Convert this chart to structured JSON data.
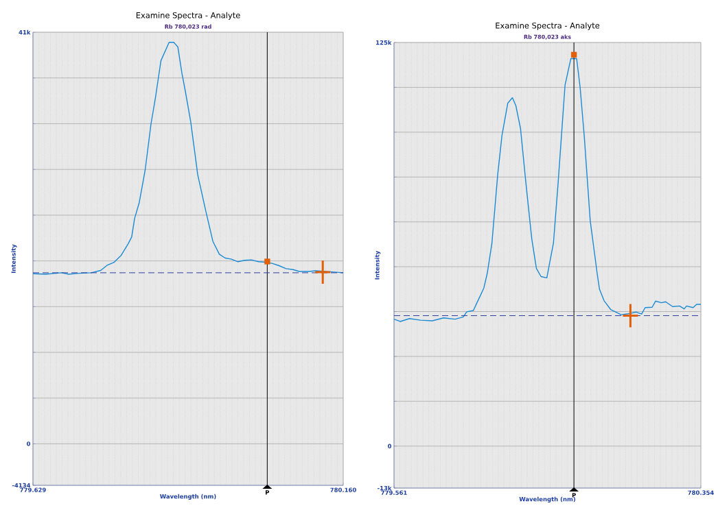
{
  "chart_data": [
    {
      "type": "line",
      "title": "Examine Spectra - Analyte",
      "subtitle": "Rb 780,023 rad",
      "xlabel": "Wavelength (nm)",
      "ylabel": "Intensity",
      "xlim": [
        779.629,
        780.16
      ],
      "xticks": [
        779.629,
        {
          "value": 780.16,
          "label": "780.160"
        }
      ],
      "ylim": [
        -4134,
        41000
      ],
      "yticks": [
        -4134,
        0,
        {
          "value": 4556,
          "label": null
        },
        {
          "value": 9111,
          "label": null
        },
        {
          "value": 13667,
          "label": null
        },
        {
          "value": 18222,
          "label": null
        },
        {
          "value": 22778,
          "label": null
        },
        {
          "value": 27333,
          "label": null
        },
        {
          "value": 31889,
          "label": null
        },
        {
          "value": 36444,
          "label": null
        },
        {
          "value": 41000,
          "label": "41k"
        }
      ],
      "grid": true,
      "series": [
        {
          "color": "#1a8ad4",
          "marker": "none",
          "x": [
            779.629,
            779.651,
            779.678,
            779.69,
            779.709,
            779.729,
            779.745,
            779.756,
            779.768,
            779.78,
            779.792,
            779.798,
            779.803,
            779.811,
            779.821,
            779.831,
            779.839,
            779.848,
            779.862,
            779.87,
            779.877,
            779.884,
            779.89,
            779.899,
            779.911,
            779.925,
            779.937,
            779.948,
            779.958,
            779.968,
            779.98,
            779.991,
            780.003,
            780.015,
            780.027,
            780.038,
            780.05,
            780.062,
            780.074,
            780.085,
            780.101,
            780.113,
            780.129,
            780.144,
            780.16
          ],
          "values": [
            16950,
            16900,
            17040,
            16900,
            16990,
            17040,
            17270,
            17790,
            18090,
            18780,
            19930,
            20610,
            22450,
            24050,
            27260,
            31850,
            34600,
            38160,
            39990,
            39990,
            39530,
            36890,
            35060,
            32080,
            26810,
            23140,
            20160,
            18890,
            18500,
            18410,
            18140,
            18280,
            18320,
            18140,
            18090,
            17980,
            17750,
            17450,
            17360,
            17170,
            17170,
            17240,
            null,
            17110,
            17040
          ]
        },
        {
          "type": "scatter",
          "color": "#e0600a",
          "marker": "square",
          "x": [
            780.03
          ],
          "values": [
            18160
          ]
        },
        {
          "type": "scatter",
          "color": "#e0600a",
          "marker": "cross",
          "x": [
            780.125
          ],
          "values": [
            17100
          ]
        }
      ],
      "ref_lines": [
        {
          "axis": "x",
          "value": 780.03,
          "label": "P",
          "color": "#000000",
          "line_style": "solid"
        },
        {
          "axis": "y",
          "value": 17040,
          "color": "#2a3f9f",
          "line_style": "dashed"
        }
      ]
    },
    {
      "type": "line",
      "title": "Examine Spectra - Analyte",
      "subtitle": "Rb 780,023 aks",
      "xlabel": "Wavelength (nm)",
      "ylabel": "Intensity",
      "xlim": [
        779.561,
        780.354
      ],
      "xticks": [
        779.561,
        780.354
      ],
      "ylim": [
        -13000,
        125000
      ],
      "yticks": [
        {
          "value": -13000,
          "label": "-13k"
        },
        0,
        {
          "value": 13889,
          "label": null
        },
        {
          "value": 27778,
          "label": null
        },
        {
          "value": 41667,
          "label": null
        },
        {
          "value": 55556,
          "label": null
        },
        {
          "value": 69444,
          "label": null
        },
        {
          "value": 83333,
          "label": null
        },
        {
          "value": 97222,
          "label": null
        },
        {
          "value": 111111,
          "label": null
        },
        {
          "value": 125000,
          "label": "125k"
        }
      ],
      "grid": true,
      "series": [
        {
          "color": "#1a8ad4",
          "marker": "none",
          "x": [
            779.561,
            779.577,
            779.601,
            779.63,
            779.66,
            779.689,
            779.719,
            779.74,
            779.749,
            779.766,
            779.775,
            779.793,
            779.802,
            779.814,
            779.829,
            779.84,
            779.855,
            779.867,
            779.876,
            779.888,
            779.902,
            779.917,
            779.929,
            779.941,
            779.956,
            779.962,
            779.973,
            779.985,
            780.003,
            780.018,
            780.033,
            780.042,
            780.053,
            780.068,
            780.086,
            780.092,
            780.104,
            780.121,
            780.148,
            780.172,
            780.187,
            780.201,
            780.21,
            780.228,
            780.237,
            780.252,
            780.263,
            780.281,
            780.299,
            780.311,
            780.317,
            780.334,
            780.343,
            780.354
          ],
          "values": [
            39300,
            38600,
            39500,
            39000,
            38800,
            39700,
            39300,
            40000,
            41600,
            42000,
            44300,
            48900,
            53500,
            62800,
            84100,
            96200,
            106200,
            107900,
            105400,
            98300,
            81300,
            64200,
            55000,
            52500,
            52100,
            56000,
            62800,
            81300,
            111800,
            120000,
            120000,
            111100,
            95500,
            69900,
            53500,
            48600,
            45000,
            42300,
            40700,
            41100,
            41500,
            40900,
            42900,
            43000,
            44900,
            44400,
            44700,
            43200,
            43400,
            42500,
            43400,
            42900,
            43900,
            43900
          ]
        },
        {
          "type": "scatter",
          "color": "#e0600a",
          "marker": "square",
          "x": [
            780.026
          ],
          "values": [
            121200
          ]
        },
        {
          "type": "scatter",
          "color": "#e0600a",
          "marker": "cross",
          "x": [
            780.172
          ],
          "values": [
            40400
          ]
        }
      ],
      "ref_lines": [
        {
          "axis": "x",
          "value": 780.026,
          "label": "P",
          "color": "#000000",
          "line_style": "solid"
        },
        {
          "axis": "y",
          "value": 40400,
          "color": "#2a3f9f",
          "line_style": "dashed"
        }
      ]
    }
  ]
}
